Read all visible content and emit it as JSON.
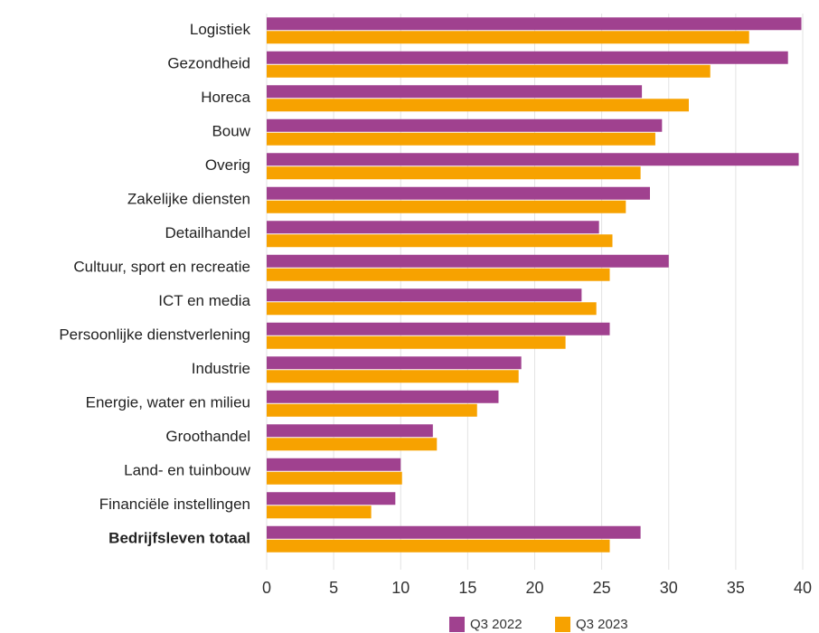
{
  "chart_data": {
    "type": "bar",
    "orientation": "horizontal",
    "categories": [
      "Logistiek",
      "Gezondheid",
      "Horeca",
      "Bouw",
      "Overig",
      "Zakelijke diensten",
      "Detailhandel",
      "Cultuur, sport en recreatie",
      "ICT en media",
      "Persoonlijke dienstverlening",
      "Industrie",
      "Energie, water en milieu",
      "Groothandel",
      "Land- en tuinbouw",
      "Financiële instellingen",
      "Bedrijfsleven totaal"
    ],
    "series": [
      {
        "name": "Q3 2022",
        "color": "#a0418f",
        "values": [
          39.9,
          38.9,
          28.0,
          29.5,
          39.7,
          28.6,
          24.8,
          30.0,
          23.5,
          25.6,
          19.0,
          17.3,
          12.4,
          10.0,
          9.6,
          27.9
        ]
      },
      {
        "name": "Q3 2023",
        "color": "#f7a200",
        "values": [
          36.0,
          33.1,
          31.5,
          29.0,
          27.9,
          26.8,
          25.8,
          25.6,
          24.6,
          22.3,
          18.8,
          15.7,
          12.7,
          10.1,
          7.8,
          25.6
        ]
      }
    ],
    "xlim": [
      0,
      40
    ],
    "xticks": [
      0,
      5,
      10,
      15,
      20,
      25,
      30,
      35,
      40
    ],
    "grid": true,
    "legend": "bottom"
  }
}
